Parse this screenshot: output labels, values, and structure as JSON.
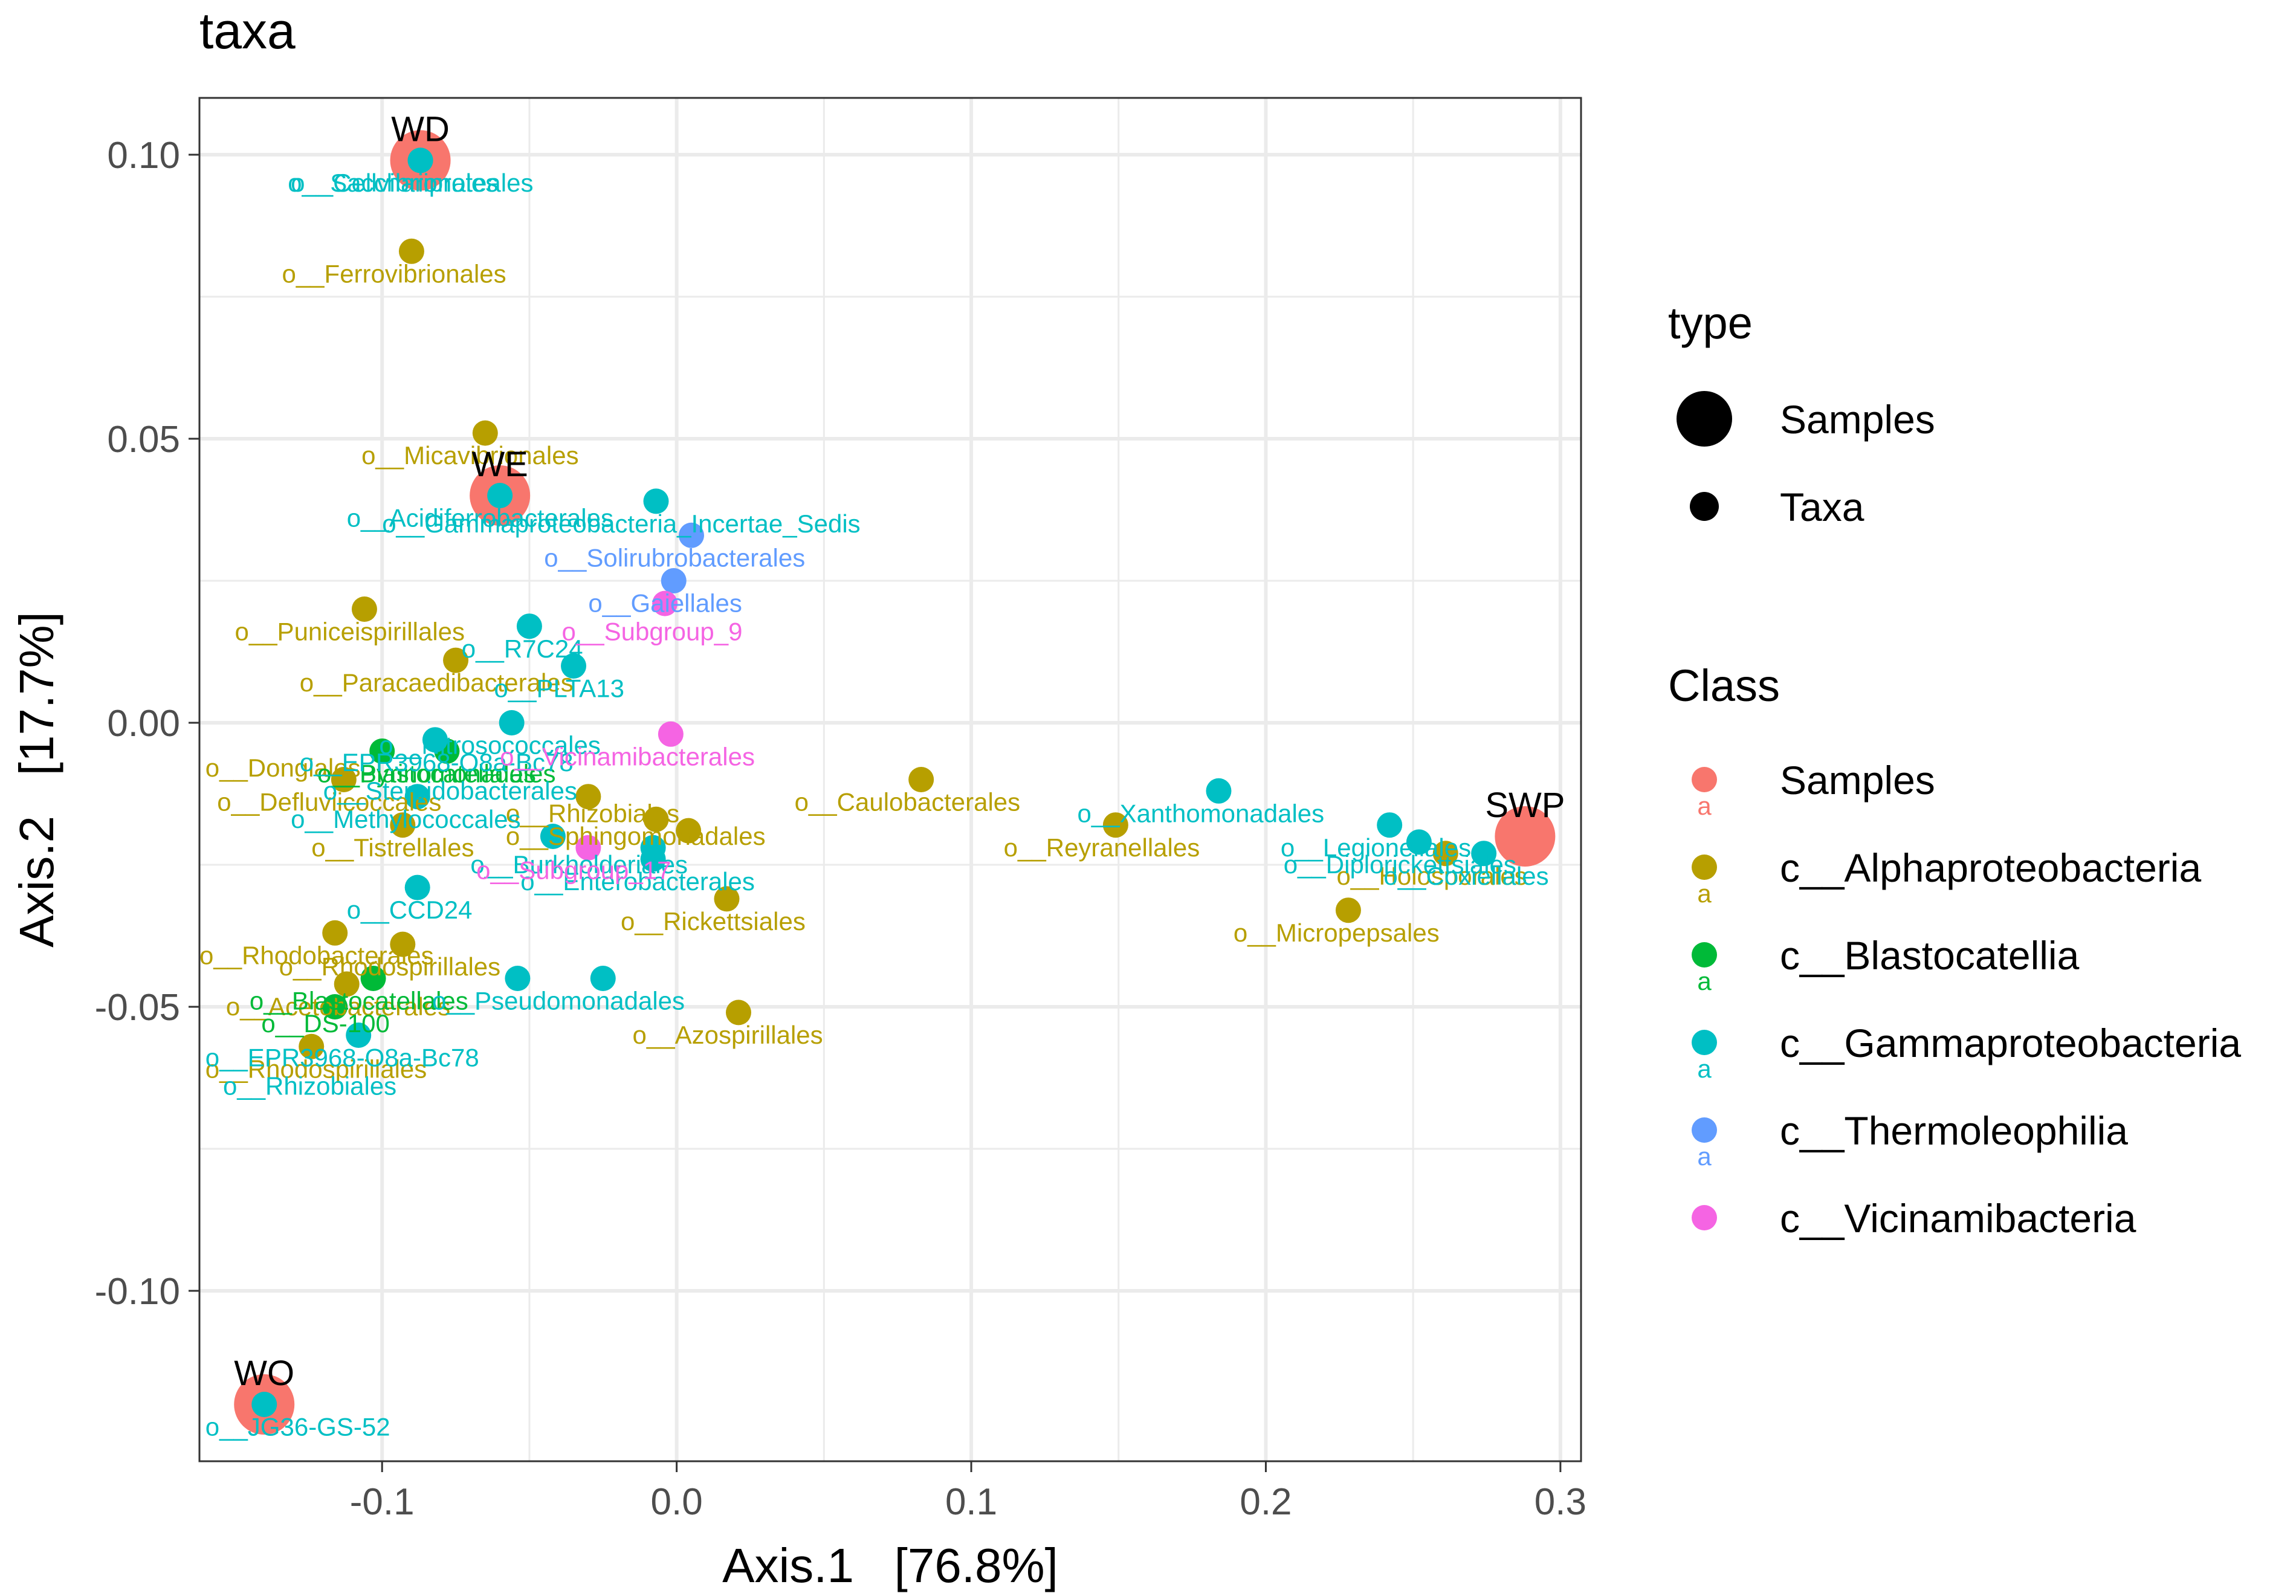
{
  "chart_data": {
    "type": "scatter",
    "title": "taxa",
    "xlabel": "Axis.1   [76.8%]",
    "ylabel": "Axis.2   [17.7%]",
    "xlim": [
      -0.162,
      0.307
    ],
    "ylim": [
      -0.13,
      0.11
    ],
    "x_ticks": [
      -0.1,
      0.0,
      0.1,
      0.2,
      0.3
    ],
    "x_tick_labels": [
      "-0.1",
      "0.0",
      "0.1",
      "0.2",
      "0.3"
    ],
    "y_ticks": [
      -0.1,
      -0.05,
      0.0,
      0.05,
      0.1
    ],
    "y_tick_labels": [
      "-0.10",
      "-0.05",
      "0.00",
      "0.05",
      "0.10"
    ],
    "grid": true,
    "classes": [
      {
        "key": "samples",
        "name": "Samples",
        "color": "#F8766D"
      },
      {
        "key": "alpha",
        "name": "c__Alphaproteobacteria",
        "color": "#B79F00"
      },
      {
        "key": "blasto",
        "name": "c__Blastocatellia",
        "color": "#00BA38"
      },
      {
        "key": "gamma",
        "name": "c__Gammaproteobacteria",
        "color": "#00BFC4"
      },
      {
        "key": "thermo",
        "name": "c__Thermoleophilia",
        "color": "#619CFF"
      },
      {
        "key": "vicin",
        "name": "c__Vicinamibacteria",
        "color": "#F564E3"
      }
    ],
    "legend": {
      "type_title": "type",
      "type_items": [
        "Samples",
        "Taxa"
      ],
      "class_title": "Class",
      "key_letter": "a",
      "position": "right"
    },
    "samples": [
      {
        "label": "WD",
        "x": -0.087,
        "y": 0.099
      },
      {
        "label": "WE",
        "x": -0.06,
        "y": 0.04
      },
      {
        "label": "SWP",
        "x": 0.288,
        "y": -0.02
      },
      {
        "label": "WO",
        "x": -0.14,
        "y": -0.12
      }
    ],
    "taxa": [
      {
        "label": "o__Ferrovibrionales",
        "cls": "alpha",
        "x": -0.09,
        "y": 0.083,
        "lx": -0.134,
        "ly": 0.079
      },
      {
        "label": "o__Micavibrionales",
        "cls": "alpha",
        "x": -0.065,
        "y": 0.051,
        "lx": -0.107,
        "ly": 0.047
      },
      {
        "label": "o__Puniceispirillales",
        "cls": "alpha",
        "x": -0.106,
        "y": 0.02,
        "lx": -0.15,
        "ly": 0.016
      },
      {
        "label": "o__Paracaedibacterales",
        "cls": "alpha",
        "x": -0.075,
        "y": 0.011,
        "lx": -0.128,
        "ly": 0.007
      },
      {
        "label": "o__Dongiales",
        "cls": "alpha",
        "x": -0.113,
        "y": -0.01,
        "lx": -0.16,
        "ly": -0.008
      },
      {
        "label": "o__Defluviicoccales",
        "cls": "alpha",
        "x": -0.093,
        "y": -0.018,
        "lx": -0.156,
        "ly": -0.014
      },
      {
        "label": "o__Tistrellales",
        "cls": "alpha",
        "x": -0.03,
        "y": -0.013,
        "lx": -0.124,
        "ly": -0.022
      },
      {
        "label": "o__Rhizobiales",
        "cls": "alpha",
        "x": -0.007,
        "y": -0.017,
        "lx": -0.058,
        "ly": -0.016
      },
      {
        "label": "o__Sphingomonadales",
        "cls": "alpha",
        "x": 0.004,
        "y": -0.019,
        "lx": -0.058,
        "ly": -0.02
      },
      {
        "label": "o__Caulobacterales",
        "cls": "alpha",
        "x": 0.083,
        "y": -0.01,
        "lx": 0.04,
        "ly": -0.014
      },
      {
        "label": "o__Reyranellales",
        "cls": "alpha",
        "x": 0.149,
        "y": -0.018,
        "lx": 0.111,
        "ly": -0.022
      },
      {
        "label": "o__Rickettsiales",
        "cls": "alpha",
        "x": 0.017,
        "y": -0.031,
        "lx": -0.019,
        "ly": -0.035
      },
      {
        "label": "o__Micropepsales",
        "cls": "alpha",
        "x": 0.228,
        "y": -0.033,
        "lx": 0.189,
        "ly": -0.037
      },
      {
        "label": "o__Holosporales",
        "cls": "alpha",
        "x": 0.261,
        "y": -0.023,
        "lx": 0.224,
        "ly": -0.027
      },
      {
        "label": "o__Rhodobacterales",
        "cls": "alpha",
        "x": -0.116,
        "y": -0.037,
        "lx": -0.162,
        "ly": -0.041
      },
      {
        "label": "o__Rhodospirillales",
        "cls": "alpha",
        "x": -0.093,
        "y": -0.039,
        "lx": -0.135,
        "ly": -0.043
      },
      {
        "label": "o__Acetobacterales",
        "cls": "alpha",
        "x": -0.112,
        "y": -0.046,
        "lx": -0.153,
        "ly": -0.05
      },
      {
        "label": "o__Azospirillales",
        "cls": "alpha",
        "x": 0.021,
        "y": -0.051,
        "lx": -0.015,
        "ly": -0.055
      },
      {
        "label": "o__Rhodospirillales",
        "cls": "alpha",
        "x": -0.124,
        "y": -0.057,
        "lx": -0.16,
        "ly": -0.061
      },
      {
        "label": "o__Pyrinomonadales",
        "cls": "blasto",
        "x": -0.078,
        "y": -0.005,
        "lx": -0.122,
        "ly": -0.009
      },
      {
        "label": "o__Blastocatellales",
        "cls": "blasto",
        "x": -0.1,
        "y": -0.005,
        "lx": -0.122,
        "ly": -0.009
      },
      {
        "label": "o__Blastocatellales",
        "cls": "blasto",
        "x": -0.103,
        "y": -0.045,
        "lx": -0.145,
        "ly": -0.049
      },
      {
        "label": "o__DS-100",
        "cls": "blasto",
        "x": -0.116,
        "y": -0.05,
        "lx": -0.141,
        "ly": -0.053
      },
      {
        "label": "o__Sacchariproteales",
        "cls": "gamma",
        "x": -0.087,
        "y": 0.099,
        "lx": -0.132,
        "ly": 0.095
      },
      {
        "label": "o__Cellvibrionales",
        "cls": "gamma",
        "x": -0.087,
        "y": 0.099,
        "lx": -0.131,
        "ly": 0.095
      },
      {
        "label": "o__Acidiferrobacterales",
        "cls": "gamma",
        "x": -0.06,
        "y": 0.04,
        "lx": -0.112,
        "ly": 0.036
      },
      {
        "label": "o__Gammaproteobacteria_Incertae_Sedis",
        "cls": "gamma",
        "x": -0.007,
        "y": 0.039,
        "lx": -0.1,
        "ly": 0.035
      },
      {
        "label": "o__R7C24",
        "cls": "gamma",
        "x": -0.05,
        "y": 0.017,
        "lx": -0.073,
        "ly": 0.013
      },
      {
        "label": "o__PLTA13",
        "cls": "gamma",
        "x": -0.035,
        "y": 0.01,
        "lx": -0.062,
        "ly": 0.006
      },
      {
        "label": "o__Nitrosococcales",
        "cls": "gamma",
        "x": -0.056,
        "y": 0.0,
        "lx": -0.101,
        "ly": -0.004
      },
      {
        "label": "o__EPR3968-O8a-Bc78",
        "cls": "gamma",
        "x": -0.082,
        "y": -0.003,
        "lx": -0.128,
        "ly": -0.007
      },
      {
        "label": "o__Steroidobacterales",
        "cls": "gamma",
        "x": -0.088,
        "y": -0.013,
        "lx": -0.12,
        "ly": -0.012
      },
      {
        "label": "o__Methylococcales",
        "cls": "gamma",
        "x": -0.042,
        "y": -0.02,
        "lx": -0.131,
        "ly": -0.017
      },
      {
        "label": "o__Burkholderiales",
        "cls": "gamma",
        "x": -0.008,
        "y": -0.024,
        "lx": -0.07,
        "ly": -0.025
      },
      {
        "label": "o__Enterobacterales",
        "cls": "gamma",
        "x": -0.008,
        "y": -0.022,
        "lx": -0.053,
        "ly": -0.028
      },
      {
        "label": "o__CCD24",
        "cls": "gamma",
        "x": -0.088,
        "y": -0.029,
        "lx": -0.112,
        "ly": -0.033
      },
      {
        "label": "o__Pseudomonadales",
        "cls": "gamma",
        "x": -0.025,
        "y": -0.045,
        "lx": -0.083,
        "ly": -0.049
      },
      {
        "label": "o__EPR3968-O8a-Bc78",
        "cls": "gamma",
        "x": -0.108,
        "y": -0.055,
        "lx": -0.16,
        "ly": -0.059
      },
      {
        "label": "o__Xanthomonadales",
        "cls": "gamma",
        "x": 0.184,
        "y": -0.012,
        "lx": 0.136,
        "ly": -0.016
      },
      {
        "label": "o__Legionellales",
        "cls": "gamma",
        "x": 0.242,
        "y": -0.018,
        "lx": 0.205,
        "ly": -0.022
      },
      {
        "label": "o__Diplorickettsiales",
        "cls": "gamma",
        "x": 0.252,
        "y": -0.021,
        "lx": 0.206,
        "ly": -0.025
      },
      {
        "label": "o__Coxiellales",
        "cls": "gamma",
        "x": 0.274,
        "y": -0.023,
        "lx": 0.24,
        "ly": -0.027
      },
      {
        "label": "o__JG36-GS-52",
        "cls": "gamma",
        "x": -0.14,
        "y": -0.12,
        "lx": -0.16,
        "ly": -0.124
      },
      {
        "label": "o__Solirubrobacterales",
        "cls": "thermo",
        "x": 0.005,
        "y": 0.033,
        "lx": -0.045,
        "ly": 0.029
      },
      {
        "label": "o__Gaiellales",
        "cls": "thermo",
        "x": -0.001,
        "y": 0.025,
        "lx": -0.03,
        "ly": 0.021
      },
      {
        "label": "o__Subgroup_9",
        "cls": "vicin",
        "x": -0.004,
        "y": 0.021,
        "lx": -0.039,
        "ly": 0.016
      },
      {
        "label": "o__Vicinamibacterales",
        "cls": "vicin",
        "x": -0.002,
        "y": -0.002,
        "lx": -0.06,
        "ly": -0.006
      },
      {
        "label": "o__Subgroup_17",
        "cls": "vicin",
        "x": -0.03,
        "y": -0.022,
        "lx": -0.068,
        "ly": -0.026
      },
      {
        "label": "o__Rhizobiales",
        "cls": "gamma",
        "x": -0.054,
        "y": -0.045,
        "lx": -0.154,
        "ly": -0.064
      }
    ]
  }
}
